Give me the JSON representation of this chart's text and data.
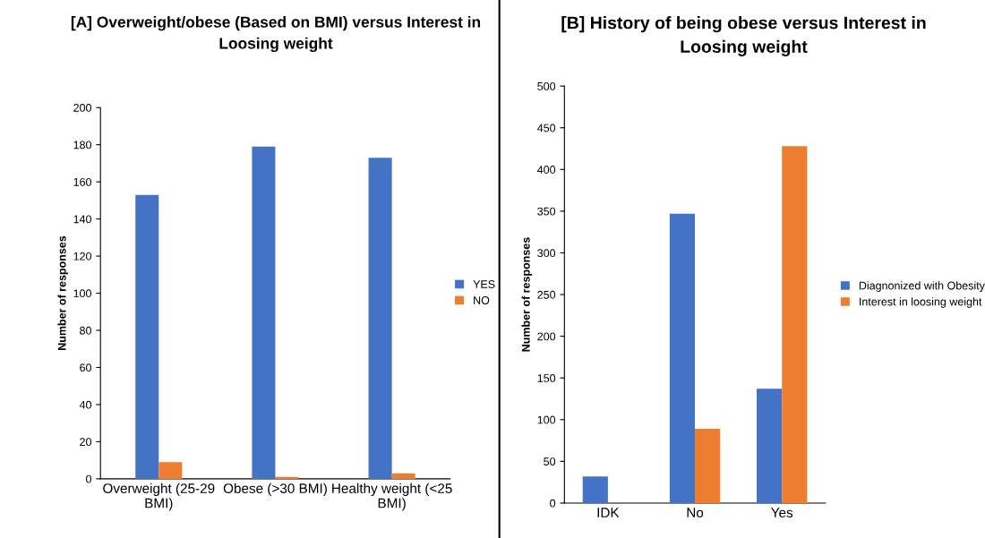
{
  "chart_data": [
    {
      "type": "bar",
      "title": "[A] Overweight/obese (Based on BMI) versus Interest in Loosing weight",
      "ylabel": "Number of responses",
      "categories": [
        "Overweight (25-29\nBMI)",
        "Obese (>30 BMI)",
        "Healthy weight (<25\nBMI)"
      ],
      "series": [
        {
          "name": "YES",
          "color": "#4472c4",
          "values": [
            153,
            179,
            173
          ]
        },
        {
          "name": "NO",
          "color": "#ed7d31",
          "values": [
            9,
            1,
            3
          ]
        }
      ],
      "ylim": [
        0,
        200
      ],
      "yticks": [
        0,
        20,
        40,
        60,
        80,
        100,
        120,
        140,
        160,
        180,
        200
      ],
      "grid": false,
      "legend": "right"
    },
    {
      "type": "bar",
      "title": "[B] History of being obese versus Interest in Loosing weight",
      "ylabel": "Number of responses",
      "categories": [
        "IDK",
        "No",
        "Yes"
      ],
      "series": [
        {
          "name": "Diagnonized with Obesity",
          "color": "#4472c4",
          "values": [
            32,
            347,
            137
          ]
        },
        {
          "name": "Interest in loosing weight",
          "color": "#ed7d31",
          "values": [
            null,
            89,
            428
          ]
        }
      ],
      "ylim": [
        0,
        500
      ],
      "yticks": [
        0,
        50,
        100,
        150,
        200,
        250,
        300,
        350,
        400,
        450,
        500
      ],
      "grid": false,
      "legend": "right"
    }
  ]
}
